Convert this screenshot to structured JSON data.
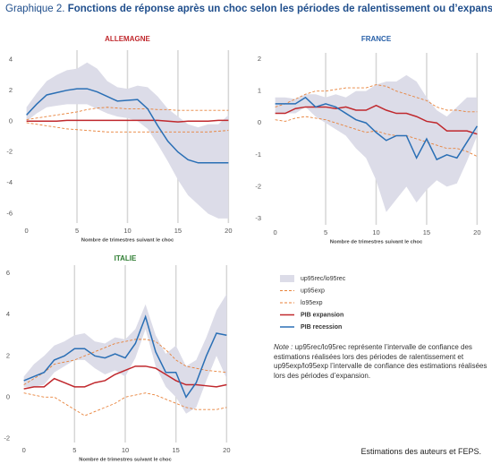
{
  "header": {
    "label": "Graphique 2.",
    "title": "Fonctions de réponse après un choc selon les périodes de ralentissement ou d’expansion"
  },
  "note": {
    "label": "Note :",
    "text": "up95rec/lo95rec représente l’intervalle de confiance des estimations réalisées lors des périodes de ralentissement et up95exp/lo95exp l’intervalle de confiance des estimations réalisées lors des périodes d’expansion."
  },
  "source": "Estimations des auteurs et FEPS.",
  "chart_data": [
    {
      "type": "line",
      "title": "ALLEMAGNE",
      "title_color": "#c0282d",
      "xlabel": "Nombre de trimestres suivant le choc",
      "x": [
        0,
        1,
        2,
        3,
        4,
        5,
        6,
        7,
        8,
        9,
        10,
        11,
        12,
        13,
        14,
        15,
        16,
        17,
        18,
        19,
        20
      ],
      "xlim": [
        -0.5,
        20.5
      ],
      "xticks": [
        0,
        5,
        10,
        15,
        20
      ],
      "ylim": [
        -6.6,
        4.6
      ],
      "yticks": [
        -6,
        -4,
        -2,
        0,
        2,
        4
      ],
      "grid": "x",
      "series": [
        {
          "name": "up95rec/lo95rec",
          "color": "#dcdce8",
          "style": "band",
          "values": [
            0.9,
            1.8,
            2.6,
            3.0,
            3.3,
            3.4,
            3.8,
            3.4,
            2.6,
            2.2,
            2.1,
            2.3,
            2.2,
            1.6,
            0.8,
            0.3,
            -0.2,
            -0.4,
            -0.2,
            -0.2,
            0.4
          ],
          "lower": [
            0,
            0.5,
            0.9,
            1.0,
            1.1,
            1.1,
            1.1,
            0.8,
            0.5,
            0.3,
            0.2,
            0,
            -0.5,
            -1.5,
            -2.6,
            -3.8,
            -4.8,
            -5.4,
            -6.0,
            -6.3,
            -6.3
          ]
        },
        {
          "name": "up95exp",
          "color": "#e8823a",
          "style": "dashed",
          "values": [
            0.1,
            0.2,
            0.3,
            0.4,
            0.5,
            0.6,
            0.75,
            0.85,
            0.9,
            0.85,
            0.8,
            0.8,
            0.8,
            0.75,
            0.75,
            0.7,
            0.7,
            0.7,
            0.7,
            0.7,
            0.7
          ]
        },
        {
          "name": "lo95exp",
          "color": "#e8823a",
          "style": "dashed",
          "values": [
            -0.1,
            -0.2,
            -0.3,
            -0.4,
            -0.5,
            -0.55,
            -0.6,
            -0.65,
            -0.7,
            -0.7,
            -0.7,
            -0.7,
            -0.7,
            -0.7,
            -0.7,
            -0.7,
            -0.7,
            -0.7,
            -0.7,
            -0.65,
            -0.6
          ]
        },
        {
          "name": "PIB expansion",
          "color": "#c0282d",
          "style": "solid",
          "values": [
            0,
            0,
            0,
            0,
            0.05,
            0.05,
            0.05,
            0.05,
            0.05,
            0.05,
            0.05,
            0.05,
            0.05,
            0.05,
            0,
            -0.05,
            0,
            0,
            0,
            0.05,
            0.05
          ]
        },
        {
          "name": "PIB recession",
          "color": "#2a6fb5",
          "style": "solid",
          "values": [
            0.4,
            1.1,
            1.7,
            1.85,
            2.0,
            2.1,
            2.1,
            1.9,
            1.6,
            1.3,
            1.35,
            1.4,
            0.8,
            -0.3,
            -1.3,
            -2.0,
            -2.5,
            -2.7,
            -2.7,
            -2.7,
            -2.7
          ]
        }
      ]
    },
    {
      "type": "line",
      "title": "FRANCE",
      "title_color": "#2860a8",
      "xlabel": "Nombre de trimestres suivant le choc",
      "x": [
        0,
        1,
        2,
        3,
        4,
        5,
        6,
        7,
        8,
        9,
        10,
        11,
        12,
        13,
        14,
        15,
        16,
        17,
        18,
        19,
        20
      ],
      "xlim": [
        -0.5,
        20.5
      ],
      "xticks": [
        0,
        5,
        10,
        15,
        20
      ],
      "ylim": [
        -3.2,
        2.2
      ],
      "yticks": [
        -3,
        -2,
        -1,
        0,
        1,
        2
      ],
      "grid": "x",
      "series": [
        {
          "name": "up95rec/lo95rec",
          "color": "#dcdce8",
          "style": "band",
          "values": [
            0.8,
            0.8,
            0.75,
            0.9,
            0.9,
            0.8,
            0.9,
            0.8,
            1.0,
            1.0,
            1.2,
            1.3,
            1.3,
            1.5,
            1.3,
            0.8,
            0.4,
            0.2,
            0.5,
            0.8,
            0.8
          ],
          "lower": [
            0.3,
            0.3,
            0.3,
            0.5,
            0.2,
            0,
            -0.2,
            -0.4,
            -0.8,
            -1.1,
            -1.8,
            -2.8,
            -2.4,
            -2.0,
            -2.5,
            -2.1,
            -1.8,
            -2.0,
            -1.9,
            -1.2,
            -0.4
          ]
        },
        {
          "name": "up95exp",
          "color": "#e8823a",
          "style": "dashed",
          "values": [
            0.5,
            0.6,
            0.75,
            0.9,
            1.0,
            1.0,
            1.05,
            1.1,
            1.1,
            1.1,
            1.2,
            1.15,
            1.0,
            0.9,
            0.8,
            0.7,
            0.5,
            0.4,
            0.4,
            0.35,
            0.35
          ]
        },
        {
          "name": "lo95exp",
          "color": "#e8823a",
          "style": "dashed",
          "values": [
            0.1,
            0.05,
            0.15,
            0.2,
            0.15,
            0.1,
            0,
            -0.1,
            -0.2,
            -0.3,
            -0.25,
            -0.35,
            -0.4,
            -0.4,
            -0.5,
            -0.6,
            -0.7,
            -0.8,
            -0.8,
            -0.9,
            -1.05
          ]
        },
        {
          "name": "PIB expansion",
          "color": "#c0282d",
          "style": "solid",
          "values": [
            0.3,
            0.3,
            0.45,
            0.5,
            0.5,
            0.5,
            0.45,
            0.5,
            0.4,
            0.4,
            0.55,
            0.4,
            0.3,
            0.3,
            0.2,
            0.05,
            0,
            -0.25,
            -0.25,
            -0.25,
            -0.35
          ]
        },
        {
          "name": "PIB recession",
          "color": "#2a6fb5",
          "style": "solid",
          "values": [
            0.6,
            0.6,
            0.6,
            0.8,
            0.5,
            0.6,
            0.5,
            0.3,
            0.1,
            0,
            -0.3,
            -0.55,
            -0.4,
            -0.4,
            -1.1,
            -0.5,
            -1.15,
            -1.0,
            -1.1,
            -0.6,
            -0.1
          ]
        }
      ]
    },
    {
      "type": "line",
      "title": "ITALIE",
      "title_color": "#2e7d32",
      "xlabel": "Nombre de trimestres suivant le choc",
      "x": [
        0,
        1,
        2,
        3,
        4,
        5,
        6,
        7,
        8,
        9,
        10,
        11,
        12,
        13,
        14,
        15,
        16,
        17,
        18,
        19,
        20
      ],
      "xlim": [
        -0.5,
        20.5
      ],
      "xticks": [
        0,
        5,
        10,
        15,
        20
      ],
      "ylim": [
        -2.2,
        6.4
      ],
      "yticks": [
        -2,
        0,
        2,
        4,
        6
      ],
      "grid": "x",
      "series": [
        {
          "name": "up95rec/lo95rec",
          "color": "#dcdce8",
          "style": "band",
          "values": [
            1.0,
            1.6,
            2.0,
            2.5,
            2.7,
            3.0,
            3.1,
            2.7,
            2.6,
            2.9,
            2.8,
            3.3,
            4.5,
            3.0,
            2.1,
            2.5,
            1.5,
            1.8,
            2.9,
            4.2,
            5.0
          ],
          "lower": [
            0.5,
            0.5,
            0.6,
            1.2,
            1.5,
            1.8,
            1.8,
            1.4,
            1.1,
            1.3,
            1.0,
            1.9,
            3.3,
            1.5,
            0.5,
            0,
            -0.8,
            -0.5,
            0.8,
            2.0,
            0.9
          ]
        },
        {
          "name": "up95exp",
          "color": "#e8823a",
          "style": "dashed",
          "values": [
            0.6,
            0.9,
            1.2,
            1.6,
            1.7,
            1.8,
            2.0,
            2.2,
            2.4,
            2.6,
            2.7,
            2.8,
            2.8,
            2.7,
            2.3,
            1.8,
            1.5,
            1.4,
            1.3,
            1.25,
            1.2
          ]
        },
        {
          "name": "lo95exp",
          "color": "#e8823a",
          "style": "dashed",
          "values": [
            0.2,
            0.1,
            0,
            0,
            -0.3,
            -0.6,
            -0.9,
            -0.7,
            -0.5,
            -0.3,
            0,
            0.1,
            0.2,
            0.1,
            -0.1,
            -0.3,
            -0.5,
            -0.6,
            -0.6,
            -0.6,
            -0.5
          ]
        },
        {
          "name": "PIB expansion",
          "color": "#c0282d",
          "style": "solid",
          "values": [
            0.4,
            0.5,
            0.5,
            0.9,
            0.7,
            0.5,
            0.5,
            0.7,
            0.8,
            1.1,
            1.3,
            1.5,
            1.5,
            1.4,
            1.1,
            0.8,
            0.6,
            0.6,
            0.55,
            0.5,
            0.6
          ]
        },
        {
          "name": "PIB recession",
          "color": "#2a6fb5",
          "style": "solid",
          "values": [
            0.8,
            1.0,
            1.2,
            1.8,
            2.0,
            2.35,
            2.35,
            2.0,
            1.9,
            2.1,
            1.9,
            2.6,
            3.9,
            2.2,
            1.2,
            1.2,
            0,
            0.7,
            2.0,
            3.1,
            3.0
          ]
        }
      ]
    }
  ]
}
